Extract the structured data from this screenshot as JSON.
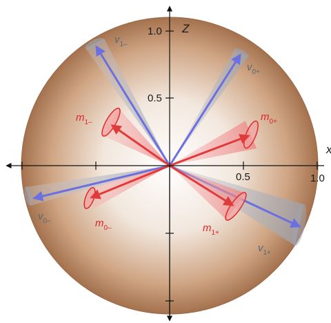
{
  "axes": {
    "z_label": "Z",
    "x_label": "x",
    "tick_labels": {
      "z_1_0": "1.0",
      "z_0_5": "0.5",
      "x_0_5": "0.5",
      "x_1_0": "1.0"
    }
  },
  "vectors": {
    "v1_minus": {
      "base": "v",
      "sub": "1–"
    },
    "v0_plus": {
      "base": "v",
      "sub": "0+"
    },
    "v0_minus": {
      "base": "v",
      "sub": "0–"
    },
    "v1_plus": {
      "base": "v",
      "sub": "1+"
    },
    "m1_minus": {
      "base": "m",
      "sub": "1–"
    },
    "m0_plus": {
      "base": "m",
      "sub": "0+"
    },
    "m0_minus": {
      "base": "m",
      "sub": "0–"
    },
    "m1_plus": {
      "base": "m",
      "sub": "1+"
    }
  },
  "colors": {
    "sphere_center": "#ffffff",
    "sphere_edge": "#a4714d",
    "v_cone": "#b4b9c2",
    "v_arrow": "#6b6fe0",
    "m_cone": "#f08080",
    "m_arrow": "#e03b3b",
    "m_text": "#d9262b",
    "v_text": "#5a6670"
  }
}
